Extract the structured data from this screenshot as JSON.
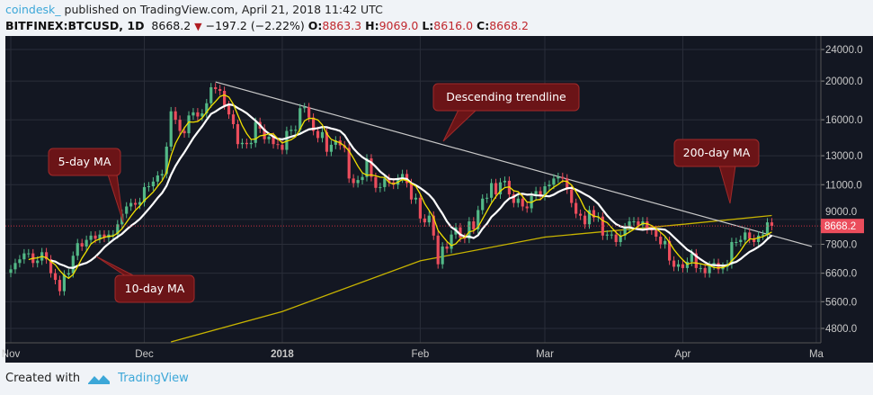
{
  "header": {
    "user": "coindesk_",
    "published": "published on TradingView.com, April 21, 2018 11:42 UTC",
    "symbol": "BITFINEX:BTCUSD, 1D",
    "last": "8668.2",
    "change": "−197.2 (−2.22%)",
    "o_label": "O:",
    "o": "8863.3",
    "h_label": "H:",
    "h": "9069.0",
    "l_label": "L:",
    "l": "8616.0",
    "c_label": "C:",
    "c": "8668.2"
  },
  "footer": {
    "created_with": "Created with",
    "brand": "TradingView"
  },
  "colors": {
    "up": "#53b987",
    "down": "#eb4d5c",
    "ma5": "#f0e000",
    "ma10": "#ffffff",
    "ma200": "#c8b400",
    "trendline": "#c8c8c8",
    "background": "#131722",
    "annotation": "#6b1417"
  },
  "chart_data": {
    "type": "candlestick",
    "scale": "log",
    "grid": true,
    "start_date": "2017-11-01",
    "closes": [
      6750,
      7000,
      7150,
      7400,
      7400,
      7000,
      7100,
      7450,
      7150,
      6600,
      6350,
      5950,
      6550,
      6600,
      7300,
      7850,
      7700,
      8000,
      8200,
      8050,
      8250,
      8100,
      8250,
      8250,
      8750,
      9300,
      9700,
      9900,
      9800,
      9950,
      10850,
      10900,
      11200,
      11600,
      11700,
      13700,
      16800,
      16000,
      15000,
      14800,
      16400,
      16700,
      16300,
      16600,
      17600,
      19300,
      19100,
      18900,
      17400,
      16500,
      15600,
      13900,
      14000,
      13900,
      14000,
      15800,
      15200,
      14300,
      14500,
      13900,
      13850,
      13450,
      15000,
      15100,
      15100,
      17100,
      17200,
      16200,
      15000,
      14400,
      14900,
      13300,
      13850,
      14200,
      13800,
      13600,
      11400,
      11100,
      11300,
      11500,
      12800,
      11500,
      10800,
      10850,
      11400,
      11150,
      11000,
      11400,
      11700,
      11100,
      10100,
      10200,
      9050,
      8850,
      9200,
      8200,
      6950,
      7700,
      7600,
      8250,
      8600,
      8100,
      8050,
      8900,
      8500,
      9500,
      10150,
      10200,
      11100,
      10400,
      11150,
      11250,
      10400,
      9900,
      10150,
      9700,
      9600,
      10300,
      10600,
      10300,
      10900,
      11000,
      11400,
      11500,
      11400,
      10700,
      9900,
      9300,
      9200,
      8750,
      9500,
      9100,
      9150,
      8200,
      8250,
      8250,
      7900,
      8200,
      8600,
      8900,
      8900,
      8700,
      8900,
      8500,
      8450,
      8150,
      7800,
      7950,
      7100,
      6850,
      6950,
      6800,
      7050,
      7400,
      6800,
      6800,
      6600,
      6900,
      7000,
      6750,
      6850,
      6950,
      7900,
      7900,
      8000,
      8350,
      8050,
      7900,
      8200,
      8250,
      8850,
      8668.2
    ],
    "ma200": [
      [
        "2017-12-07",
        4440
      ],
      [
        "2018-01-01",
        5290
      ],
      [
        "2018-02-01",
        7090
      ],
      [
        "2018-03-01",
        8130
      ],
      [
        "2018-04-01",
        8750
      ],
      [
        "2018-04-21",
        9210
      ]
    ],
    "trendline": [
      [
        "2017-12-17",
        19900
      ],
      [
        "2018-04-30",
        7700
      ]
    ],
    "y_ticks": [
      24000,
      20000,
      16000,
      13000,
      11000,
      9000,
      7800,
      6600,
      5600,
      4800
    ],
    "y_tick_labels": [
      "24000.0",
      "20000.0",
      "16000.0",
      "13000.0",
      "11000.0",
      "9000.0",
      "7800.0",
      "6600.0",
      "5600.0",
      "4800.0"
    ],
    "x_ticks": [
      [
        "2017-11-01",
        "Nov"
      ],
      [
        "2017-12-01",
        "Dec"
      ],
      [
        "2018-01-01",
        "2018"
      ],
      [
        "2018-02-01",
        "Feb"
      ],
      [
        "2018-03-01",
        "Mar"
      ],
      [
        "2018-04-01",
        "Apr"
      ],
      [
        "2018-05-01",
        "Ma"
      ]
    ],
    "last_price_label": "8668.2",
    "annotations": {
      "trend": "Descending trendline",
      "ma5": "5-day MA",
      "ma10": "10-day MA",
      "ma200": "200-day MA"
    }
  }
}
